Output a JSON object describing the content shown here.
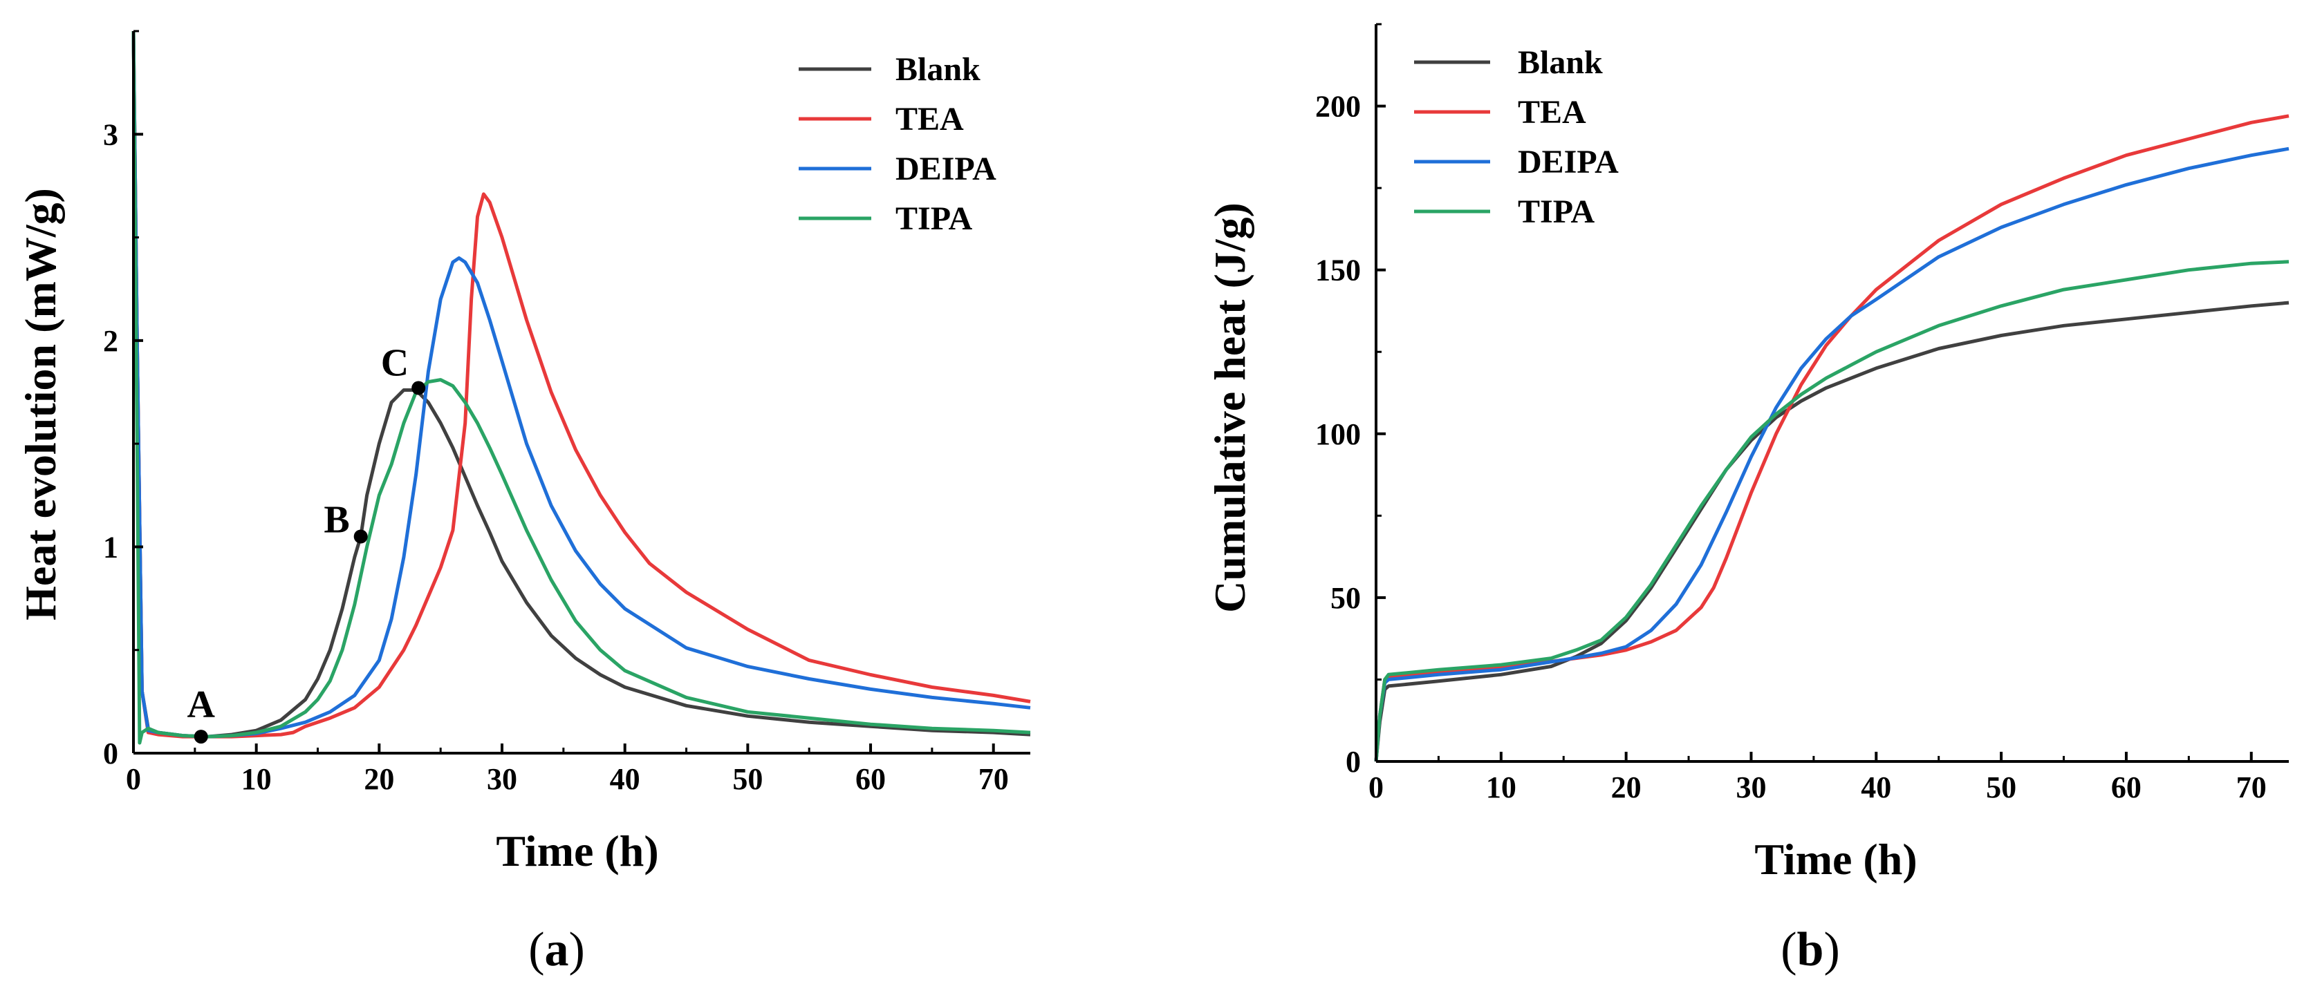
{
  "captions": {
    "a_letter": "a",
    "b_letter": "b"
  },
  "chart_data": [
    {
      "type": "line",
      "panel": "a",
      "xlabel": "Time (h)",
      "ylabel": "Heat evolution (mW/g)",
      "xlim": [
        0,
        73
      ],
      "ylim": [
        0,
        3.5
      ],
      "xticks": [
        0,
        10,
        20,
        30,
        40,
        50,
        60,
        70
      ],
      "yticks": [
        0,
        1,
        2,
        3
      ],
      "legend_position": "top-right",
      "series": [
        {
          "name": "Blank",
          "color": "#404040",
          "x": [
            0,
            0.3,
            0.7,
            1.2,
            2,
            4,
            6,
            8,
            10,
            12,
            14,
            15,
            16,
            17,
            18,
            18.5,
            19,
            20,
            21,
            22,
            23,
            24,
            25,
            26,
            27,
            28,
            29,
            30,
            32,
            34,
            36,
            38,
            40,
            45,
            50,
            55,
            60,
            65,
            70,
            73
          ],
          "y": [
            3.5,
            2.0,
            0.3,
            0.12,
            0.1,
            0.085,
            0.08,
            0.09,
            0.11,
            0.16,
            0.26,
            0.36,
            0.5,
            0.7,
            0.95,
            1.05,
            1.25,
            1.5,
            1.7,
            1.76,
            1.76,
            1.7,
            1.6,
            1.48,
            1.34,
            1.2,
            1.07,
            0.93,
            0.73,
            0.57,
            0.46,
            0.38,
            0.32,
            0.23,
            0.18,
            0.15,
            0.13,
            0.11,
            0.1,
            0.09
          ]
        },
        {
          "name": "TEA",
          "color": "#e8393a",
          "x": [
            0,
            0.3,
            0.7,
            1.2,
            2,
            4,
            6,
            8,
            10,
            12,
            13,
            14,
            16,
            18,
            20,
            22,
            23,
            24,
            25,
            26,
            27,
            27.5,
            28,
            28.5,
            29,
            30,
            31,
            32,
            34,
            36,
            38,
            40,
            42,
            45,
            50,
            55,
            60,
            65,
            70,
            73
          ],
          "y": [
            3.5,
            2.0,
            0.3,
            0.1,
            0.09,
            0.08,
            0.08,
            0.08,
            0.085,
            0.09,
            0.1,
            0.13,
            0.17,
            0.22,
            0.32,
            0.5,
            0.62,
            0.76,
            0.9,
            1.08,
            1.6,
            2.2,
            2.6,
            2.71,
            2.67,
            2.5,
            2.3,
            2.1,
            1.75,
            1.47,
            1.25,
            1.07,
            0.92,
            0.78,
            0.6,
            0.45,
            0.38,
            0.32,
            0.28,
            0.25
          ]
        },
        {
          "name": "DEIPA",
          "color": "#1f6fd8",
          "x": [
            0,
            0.3,
            0.7,
            1.2,
            2,
            4,
            6,
            8,
            10,
            12,
            14,
            16,
            18,
            20,
            21,
            22,
            23,
            24,
            25,
            26,
            26.5,
            27,
            28,
            29,
            30,
            32,
            34,
            36,
            38,
            40,
            45,
            50,
            55,
            60,
            65,
            70,
            73
          ],
          "y": [
            3.5,
            2.0,
            0.3,
            0.11,
            0.1,
            0.085,
            0.08,
            0.085,
            0.095,
            0.12,
            0.15,
            0.2,
            0.28,
            0.45,
            0.65,
            0.95,
            1.35,
            1.85,
            2.2,
            2.38,
            2.4,
            2.38,
            2.28,
            2.1,
            1.9,
            1.5,
            1.2,
            0.98,
            0.82,
            0.7,
            0.51,
            0.42,
            0.36,
            0.31,
            0.27,
            0.24,
            0.22
          ]
        },
        {
          "name": "TIPA",
          "color": "#2aa465",
          "x": [
            0,
            0.3,
            0.5,
            0.7,
            1.2,
            2,
            4,
            6,
            8,
            10,
            12,
            14,
            15,
            16,
            17,
            18,
            19,
            20,
            21,
            22,
            23,
            24,
            25,
            26,
            27,
            28,
            29,
            30,
            32,
            34,
            36,
            38,
            40,
            45,
            50,
            55,
            60,
            65,
            70,
            73
          ],
          "y": [
            3.5,
            1.5,
            0.05,
            0.1,
            0.12,
            0.1,
            0.085,
            0.08,
            0.085,
            0.1,
            0.13,
            0.2,
            0.26,
            0.35,
            0.5,
            0.72,
            1.0,
            1.25,
            1.4,
            1.6,
            1.75,
            1.8,
            1.81,
            1.78,
            1.7,
            1.6,
            1.48,
            1.35,
            1.08,
            0.84,
            0.64,
            0.5,
            0.4,
            0.27,
            0.2,
            0.17,
            0.14,
            0.12,
            0.11,
            0.1
          ]
        }
      ],
      "annotations": [
        {
          "label": "A",
          "x": 5.5,
          "y": 0.08
        },
        {
          "label": "B",
          "x": 18.5,
          "y": 1.05
        },
        {
          "label": "C",
          "x": 23.2,
          "y": 1.77
        }
      ]
    },
    {
      "type": "line",
      "panel": "b",
      "xlabel": "Time (h)",
      "ylabel": "Cumulative heat (J/g)",
      "xlim": [
        0,
        73
      ],
      "ylim": [
        0,
        225
      ],
      "xticks": [
        0,
        10,
        20,
        30,
        40,
        50,
        60,
        70
      ],
      "yticks": [
        0,
        50,
        100,
        150,
        200
      ],
      "legend_position": "top-left",
      "series": [
        {
          "name": "Blank",
          "color": "#404040",
          "x": [
            0,
            0.3,
            0.7,
            1,
            5,
            10,
            14,
            16,
            18,
            20,
            22,
            24,
            26,
            28,
            30,
            32,
            34,
            36,
            38,
            40,
            45,
            50,
            55,
            60,
            65,
            70,
            73
          ],
          "y": [
            0,
            12,
            22,
            23,
            24.5,
            26.5,
            29,
            32,
            36,
            43,
            53,
            65,
            77,
            89,
            98,
            105,
            110,
            114,
            117,
            120,
            126,
            130,
            133,
            135,
            137,
            139,
            140
          ]
        },
        {
          "name": "TEA",
          "color": "#e8393a",
          "x": [
            0,
            0.3,
            0.7,
            1,
            5,
            10,
            15,
            18,
            20,
            22,
            24,
            26,
            27,
            28,
            29,
            30,
            32,
            34,
            36,
            38,
            40,
            45,
            50,
            55,
            60,
            65,
            70,
            73
          ],
          "y": [
            0,
            14,
            25,
            26,
            27,
            28.5,
            31,
            32.5,
            34,
            36.5,
            40,
            47,
            53,
            62,
            72,
            82,
            100,
            115,
            127,
            136,
            144,
            159,
            170,
            178,
            185,
            190,
            195,
            197
          ]
        },
        {
          "name": "DEIPA",
          "color": "#1f6fd8",
          "x": [
            0,
            0.3,
            0.7,
            1,
            5,
            10,
            15,
            18,
            20,
            22,
            24,
            26,
            28,
            30,
            32,
            34,
            36,
            38,
            40,
            45,
            50,
            55,
            60,
            65,
            70,
            73
          ],
          "y": [
            0,
            14,
            24,
            25,
            26.5,
            28,
            31,
            33,
            35,
            40,
            48,
            60,
            76,
            93,
            108,
            120,
            129,
            136,
            141,
            154,
            163,
            170,
            176,
            181,
            185,
            187
          ]
        },
        {
          "name": "TIPA",
          "color": "#2aa465",
          "x": [
            0,
            0.3,
            0.7,
            1,
            5,
            10,
            14,
            16,
            18,
            20,
            22,
            24,
            26,
            28,
            30,
            32,
            34,
            36,
            38,
            40,
            45,
            50,
            55,
            60,
            65,
            70,
            73
          ],
          "y": [
            0,
            14,
            25,
            26.5,
            28,
            29.5,
            31.5,
            34,
            37,
            44,
            54,
            66,
            78,
            89,
            99,
            106,
            112,
            117,
            121,
            125,
            133,
            139,
            144,
            147,
            150,
            152,
            152.5
          ]
        }
      ]
    }
  ]
}
